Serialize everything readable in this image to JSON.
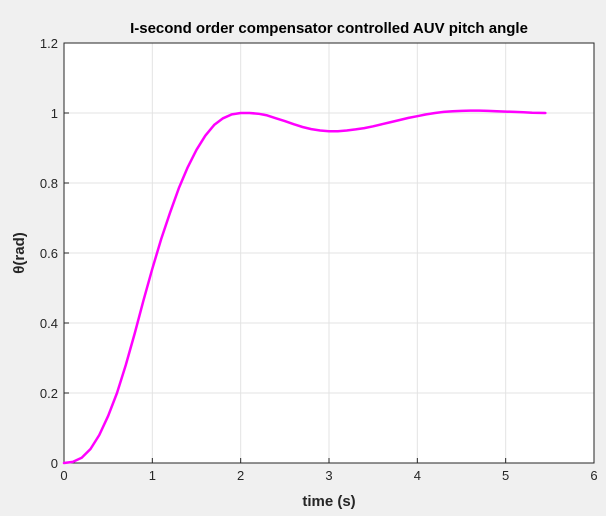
{
  "chart_data": {
    "type": "line",
    "title": "I-second order compensator controlled AUV pitch angle",
    "xlabel": "time (s)",
    "ylabel": "θ(rad)",
    "xlim": [
      0,
      6
    ],
    "ylim": [
      0,
      1.2
    ],
    "xticks": [
      0,
      1,
      2,
      3,
      4,
      5,
      6
    ],
    "yticks": [
      0,
      0.2,
      0.4,
      0.6,
      0.8,
      1,
      1.2
    ],
    "xtick_labels": [
      "0",
      "1",
      "2",
      "3",
      "4",
      "5",
      "6"
    ],
    "ytick_labels": [
      "0",
      "0.2",
      "0.4",
      "0.6",
      "0.8",
      "1",
      "1.2"
    ],
    "grid": true,
    "series": [
      {
        "color": "#ff00ff",
        "x": [
          0,
          0.1,
          0.2,
          0.3,
          0.4,
          0.5,
          0.6,
          0.7,
          0.8,
          0.9,
          1.0,
          1.1,
          1.2,
          1.3,
          1.4,
          1.5,
          1.6,
          1.7,
          1.8,
          1.9,
          2.0,
          2.1,
          2.2,
          2.3,
          2.4,
          2.5,
          2.6,
          2.7,
          2.8,
          2.9,
          3.0,
          3.1,
          3.2,
          3.3,
          3.4,
          3.5,
          3.6,
          3.7,
          3.8,
          3.9,
          4.0,
          4.1,
          4.2,
          4.3,
          4.4,
          4.5,
          4.6,
          4.7,
          4.8,
          4.9,
          5.0,
          5.1,
          5.2,
          5.3,
          5.45
        ],
        "y": [
          0,
          0.003,
          0.015,
          0.04,
          0.08,
          0.135,
          0.2,
          0.28,
          0.37,
          0.465,
          0.555,
          0.64,
          0.715,
          0.785,
          0.845,
          0.895,
          0.935,
          0.966,
          0.985,
          0.996,
          1.0,
          1.0,
          0.998,
          0.993,
          0.985,
          0.977,
          0.968,
          0.96,
          0.954,
          0.95,
          0.948,
          0.948,
          0.95,
          0.953,
          0.957,
          0.962,
          0.968,
          0.974,
          0.98,
          0.986,
          0.991,
          0.996,
          1.0,
          1.003,
          1.005,
          1.006,
          1.007,
          1.007,
          1.006,
          1.005,
          1.004,
          1.003,
          1.002,
          1.001,
          1.0
        ]
      }
    ]
  }
}
